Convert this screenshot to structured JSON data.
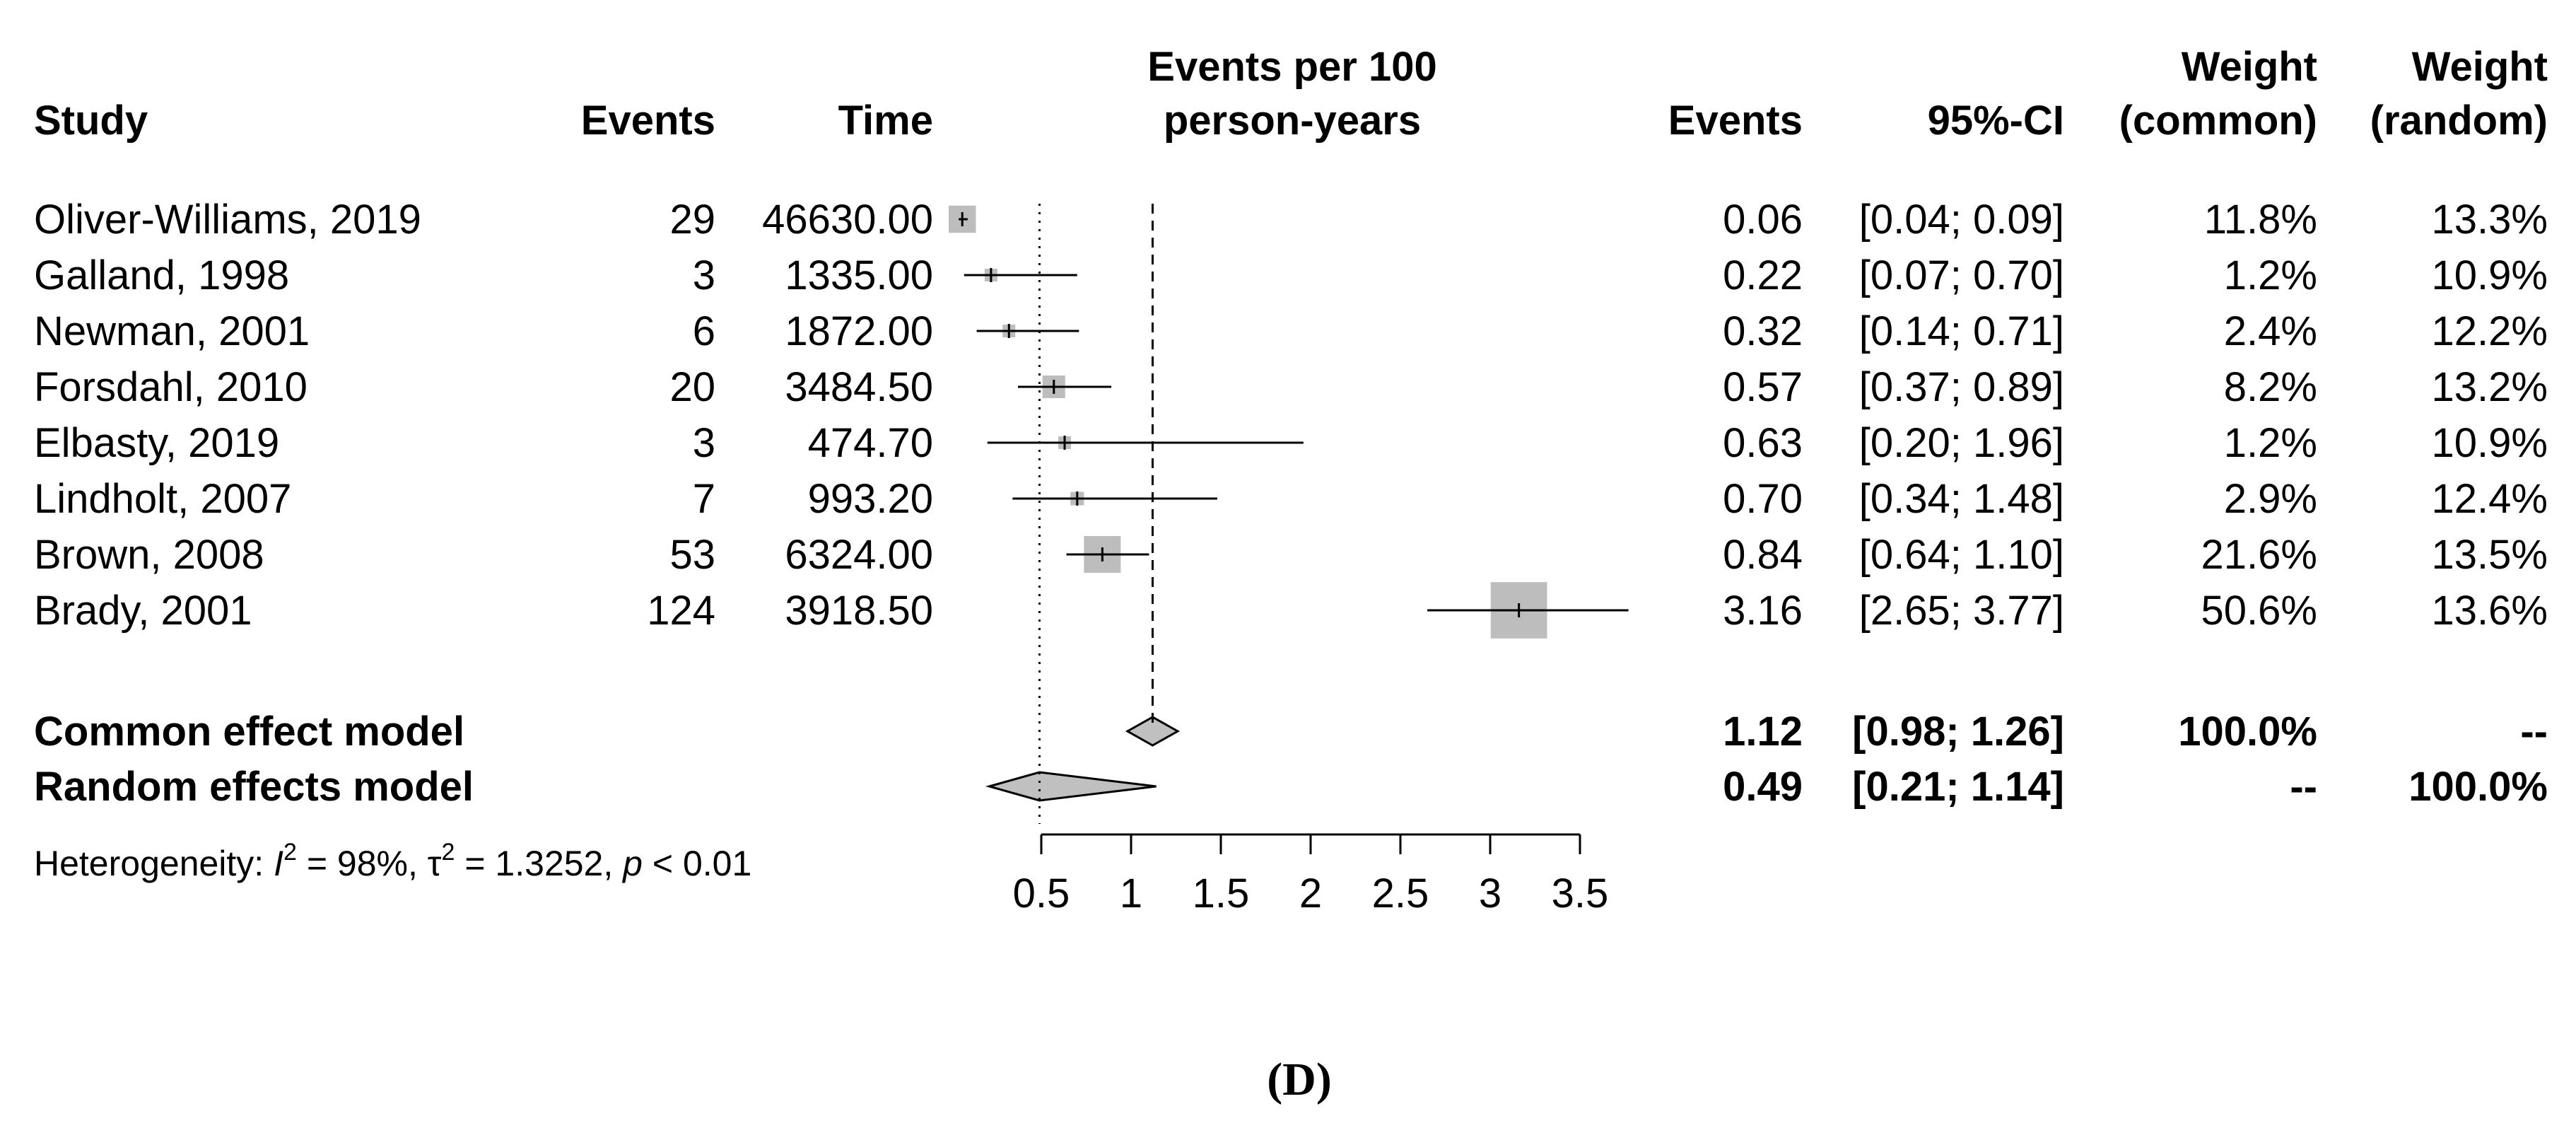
{
  "chart_data": {
    "type": "forest",
    "headers": {
      "study": "Study",
      "events": "Events",
      "time": "Time",
      "plot_title_line1": "Events per 100",
      "plot_title_line2": "person-years",
      "effect": "Events",
      "ci": "95%-CI",
      "wc_line1": "Weight",
      "wc_line2": "(common)",
      "wr_line1": "Weight",
      "wr_line2": "(random)"
    },
    "studies": [
      {
        "study": "Oliver-Williams, 2019",
        "events": "29",
        "time": "46630.00",
        "effect_label": "0.06",
        "ci_label": "[0.04; 0.09]",
        "w_common": "11.8%",
        "w_random": "13.3%",
        "estimate": 0.06,
        "lower": 0.04,
        "upper": 0.09,
        "weight": 11.8
      },
      {
        "study": "Galland, 1998",
        "events": "3",
        "time": "1335.00",
        "effect_label": "0.22",
        "ci_label": "[0.07; 0.70]",
        "w_common": "1.2%",
        "w_random": "10.9%",
        "estimate": 0.22,
        "lower": 0.07,
        "upper": 0.7,
        "weight": 1.2
      },
      {
        "study": "Newman, 2001",
        "events": "6",
        "time": "1872.00",
        "effect_label": "0.32",
        "ci_label": "[0.14; 0.71]",
        "w_common": "2.4%",
        "w_random": "12.2%",
        "estimate": 0.32,
        "lower": 0.14,
        "upper": 0.71,
        "weight": 2.4
      },
      {
        "study": "Forsdahl, 2010",
        "events": "20",
        "time": "3484.50",
        "effect_label": "0.57",
        "ci_label": "[0.37; 0.89]",
        "w_common": "8.2%",
        "w_random": "13.2%",
        "estimate": 0.57,
        "lower": 0.37,
        "upper": 0.89,
        "weight": 8.2
      },
      {
        "study": "Elbasty, 2019",
        "events": "3",
        "time": "474.70",
        "effect_label": "0.63",
        "ci_label": "[0.20; 1.96]",
        "w_common": "1.2%",
        "w_random": "10.9%",
        "estimate": 0.63,
        "lower": 0.2,
        "upper": 1.96,
        "weight": 1.2
      },
      {
        "study": "Lindholt, 2007",
        "events": "7",
        "time": "993.20",
        "effect_label": "0.70",
        "ci_label": "[0.34; 1.48]",
        "w_common": "2.9%",
        "w_random": "12.4%",
        "estimate": 0.7,
        "lower": 0.34,
        "upper": 1.48,
        "weight": 2.9
      },
      {
        "study": "Brown, 2008",
        "events": "53",
        "time": "6324.00",
        "effect_label": "0.84",
        "ci_label": "[0.64; 1.10]",
        "w_common": "21.6%",
        "w_random": "13.5%",
        "estimate": 0.84,
        "lower": 0.64,
        "upper": 1.1,
        "weight": 21.6
      },
      {
        "study": "Brady, 2001",
        "events": "124",
        "time": "3918.50",
        "effect_label": "3.16",
        "ci_label": "[2.65; 3.77]",
        "w_common": "50.6%",
        "w_random": "13.6%",
        "estimate": 3.16,
        "lower": 2.65,
        "upper": 3.77,
        "weight": 50.6
      }
    ],
    "summary": [
      {
        "label": "Common effect model",
        "effect_label": "1.12",
        "ci_label": "[0.98; 1.26]",
        "w_common": "100.0%",
        "w_random": "--",
        "estimate": 1.12,
        "lower": 0.98,
        "upper": 1.26
      },
      {
        "label": "Random effects model",
        "effect_label": "0.49",
        "ci_label": "[0.21; 1.14]",
        "w_common": "--",
        "w_random": "100.0%",
        "estimate": 0.49,
        "lower": 0.21,
        "upper": 1.14
      }
    ],
    "heterogeneity": {
      "prefix": "Heterogeneity: ",
      "i_symbol": "I",
      "i2_value": " = 98%, ",
      "tau_symbol": "τ",
      "tau2_value": " = 1.3252, ",
      "p_symbol": "p",
      "p_value": " < 0.01",
      "squared": "2"
    },
    "x_axis": {
      "range": [
        0.5,
        3.5
      ],
      "ticks": [
        "0.5",
        "1",
        "1.5",
        "2",
        "2.5",
        "3",
        "3.5"
      ],
      "clip_left": 0.0,
      "clip_right": 3.8
    },
    "reference_lines": {
      "null_value": 0.49,
      "common_value": 1.12
    },
    "caption": "(D)",
    "colors": {
      "square": "#bdbdbd",
      "square_edge": "#9a9a9a",
      "diamond_fill": "#c0c0c0",
      "line": "#000000"
    }
  }
}
